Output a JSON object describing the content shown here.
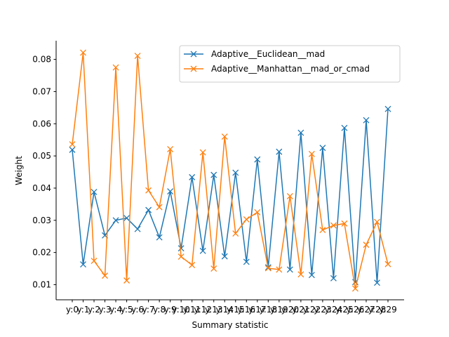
{
  "chart_data": {
    "type": "line",
    "title": "",
    "xlabel": "Summary statistic",
    "ylabel": "Weight",
    "categories": [
      "y:0",
      "y:1",
      "y:2",
      "y:3",
      "y:4",
      "y:5",
      "y:6",
      "y:7",
      "y:8",
      "y:9",
      "y:10",
      "y:11",
      "y:12",
      "y:13",
      "y:14",
      "y:15",
      "y:16",
      "y:17",
      "y:18",
      "y:19",
      "y:20",
      "y:21",
      "y:22",
      "y:23",
      "y:24",
      "y:25",
      "y:26",
      "y:27",
      "y:28",
      "y:29"
    ],
    "ylim": [
      0.0053,
      0.0858
    ],
    "yticks": [
      0.01,
      0.02,
      0.03,
      0.04,
      0.05,
      0.06,
      0.07,
      0.08
    ],
    "ytick_labels": [
      "0.01",
      "0.02",
      "0.03",
      "0.04",
      "0.05",
      "0.06",
      "0.07",
      "0.08"
    ],
    "grid": false,
    "legend_position": "top-right",
    "marker": "x",
    "series": [
      {
        "name": "Adaptive__Euclidean__mad",
        "color": "#1f77b4",
        "values": [
          0.0519,
          0.0163,
          0.0388,
          0.0253,
          0.03,
          0.0307,
          0.0273,
          0.0332,
          0.0247,
          0.039,
          0.0213,
          0.0434,
          0.0205,
          0.0441,
          0.0188,
          0.0448,
          0.0171,
          0.0489,
          0.0154,
          0.0513,
          0.0147,
          0.0572,
          0.013,
          0.0525,
          0.012,
          0.0587,
          0.0108,
          0.0611,
          0.0106,
          0.0646
        ]
      },
      {
        "name": "Adaptive__Manhattan__mad_or_cmad",
        "color": "#ff7f0e",
        "values": [
          0.0536,
          0.0821,
          0.0174,
          0.0128,
          0.0775,
          0.0113,
          0.0811,
          0.0393,
          0.0341,
          0.0521,
          0.0187,
          0.0161,
          0.0511,
          0.015,
          0.056,
          0.0259,
          0.0303,
          0.0325,
          0.0151,
          0.0147,
          0.0375,
          0.0132,
          0.0506,
          0.027,
          0.0284,
          0.029,
          0.0088,
          0.0224,
          0.0295,
          0.0164
        ]
      }
    ]
  }
}
